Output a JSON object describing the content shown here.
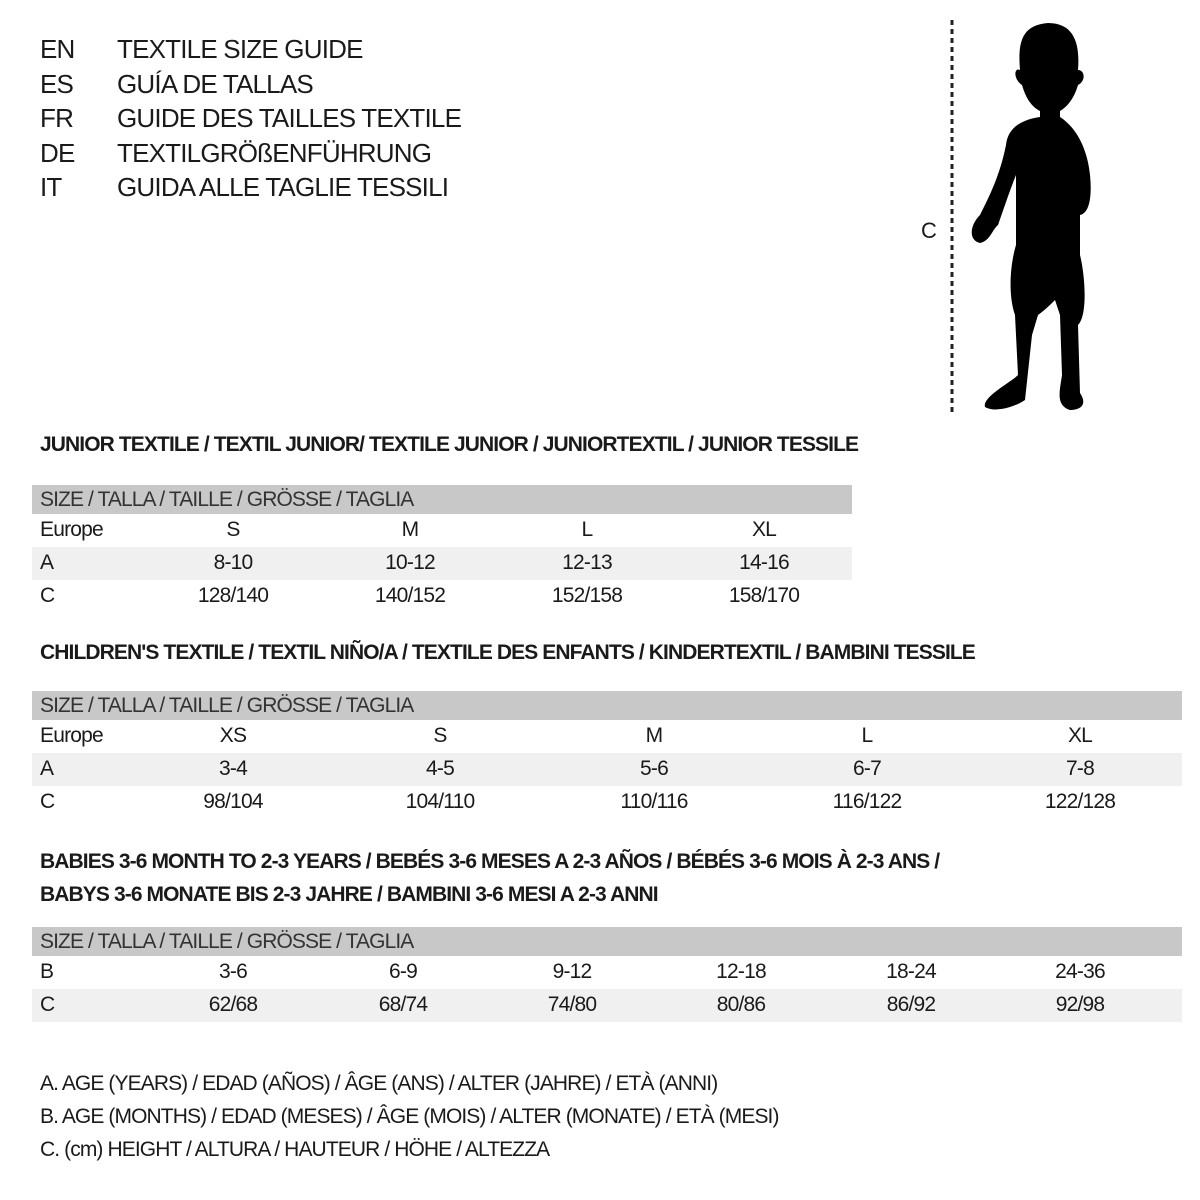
{
  "titles": [
    {
      "code": "EN",
      "text": "TEXTILE SIZE GUIDE"
    },
    {
      "code": "ES",
      "text": "GUÍA DE TALLAS"
    },
    {
      "code": "FR",
      "text": "GUIDE DES TAILLES TEXTILE"
    },
    {
      "code": "DE",
      "text": "TEXTILGRÖßENFÜHRUNG"
    },
    {
      "code": "IT",
      "text": "GUIDA ALLE TAGLIE TESSILI"
    }
  ],
  "figure": {
    "measure_label": "C",
    "icon": "child-silhouette-icon"
  },
  "colors": {
    "header_bg": "#c8c8c8",
    "alt_row_bg": "#f0f0f0"
  },
  "tables": [
    {
      "heading": [
        "JUNIOR TEXTILE / TEXTIL JUNIOR/ TEXTILE JUNIOR / JUNIORTEXTIL / JUNIOR TESSILE"
      ],
      "header": "SIZE / TALLA / TAILLE / GRÖSSE / TAGLIA",
      "rows": [
        {
          "label": "Europe",
          "cells": [
            "S",
            "M",
            "L",
            "XL"
          ]
        },
        {
          "label": "A",
          "cells": [
            "8-10",
            "10-12",
            "12-13",
            "14-16"
          ]
        },
        {
          "label": "C",
          "cells": [
            "128/140",
            "140/152",
            "152/158",
            "158/170"
          ]
        }
      ]
    },
    {
      "heading": [
        "CHILDREN'S TEXTILE / TEXTIL NIÑO/A / TEXTILE DES ENFANTS / KINDERTEXTIL / BAMBINI TESSILE"
      ],
      "header": "SIZE / TALLA / TAILLE / GRÖSSE / TAGLIA",
      "rows": [
        {
          "label": "Europe",
          "cells": [
            "XS",
            "S",
            "M",
            "L",
            "XL"
          ]
        },
        {
          "label": "A",
          "cells": [
            "3-4",
            "4-5",
            "5-6",
            "6-7",
            "7-8"
          ]
        },
        {
          "label": "C",
          "cells": [
            "98/104",
            "104/110",
            "110/116",
            "116/122",
            "122/128"
          ]
        }
      ]
    },
    {
      "heading": [
        "BABIES 3-6 MONTH TO 2-3 YEARS / BEBÉS 3-6 MESES A 2-3 AÑOS / BÉBÉS 3-6 MOIS À 2-3 ANS /",
        "BABYS 3-6 MONATE BIS 2-3 JAHRE / BAMBINI 3-6 MESI A 2-3 ANNI"
      ],
      "header": "SIZE / TALLA / TAILLE / GRÖSSE / TAGLIA",
      "rows": [
        {
          "label": "B",
          "cells": [
            "3-6",
            "6-9",
            "9-12",
            "12-18",
            "18-24",
            "24-36"
          ]
        },
        {
          "label": "C",
          "cells": [
            "62/68",
            "68/74",
            "74/80",
            "80/86",
            "86/92",
            "92/98"
          ]
        }
      ]
    }
  ],
  "legend": [
    "A. AGE (YEARS) / EDAD (AÑOS) / ÂGE (ANS) / ALTER (JAHRE) / ETÀ (ANNI)",
    "B. AGE (MONTHS) / EDAD (MESES) / ÂGE (MOIS) / ALTER (MONATE) / ETÀ (MESI)",
    "C. (cm) HEIGHT / ALTURA / HAUTEUR / HÖHE / ALTEZZA"
  ]
}
